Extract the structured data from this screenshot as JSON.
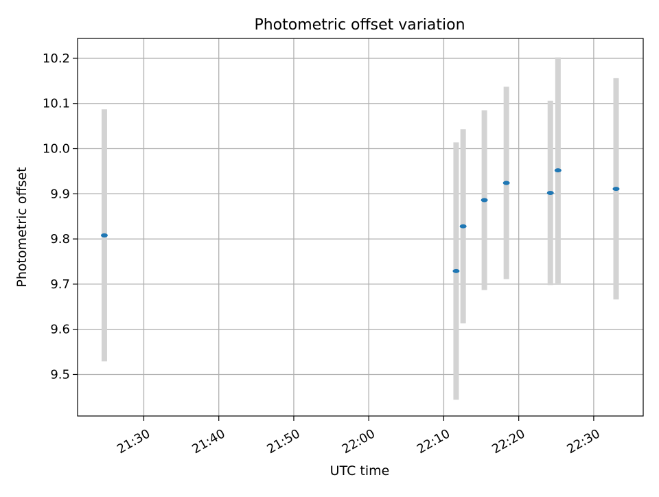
{
  "chart_data": {
    "type": "scatter",
    "title": "Photometric offset variation",
    "xlabel": "UTC time",
    "ylabel": "Photometric offset",
    "x_tick_labels": [
      "21:30",
      "21:40",
      "21:50",
      "22:00",
      "22:10",
      "22:20",
      "22:30"
    ],
    "y_tick_labels": [
      "9.5",
      "9.6",
      "9.7",
      "9.8",
      "9.9",
      "10.0",
      "10.1",
      "10.2"
    ],
    "x_range": [
      "21:21:10",
      "22:36:36"
    ],
    "ylim": [
      9.408,
      10.244
    ],
    "grid": true,
    "points": [
      {
        "time": "21:24:44",
        "y": 9.808,
        "err": 0.279
      },
      {
        "time": "22:11:39",
        "y": 9.729,
        "err": 0.285
      },
      {
        "time": "22:12:35",
        "y": 9.828,
        "err": 0.215
      },
      {
        "time": "22:15:25",
        "y": 9.886,
        "err": 0.199
      },
      {
        "time": "22:18:21",
        "y": 9.924,
        "err": 0.213
      },
      {
        "time": "22:24:13",
        "y": 9.902,
        "err": 0.204
      },
      {
        "time": "22:25:14",
        "y": 9.952,
        "err": 0.25
      },
      {
        "time": "22:32:59",
        "y": 9.911,
        "err": 0.245
      }
    ],
    "colors": {
      "marker": "#1f77b4",
      "errorbar": "#d3d3d3",
      "grid": "#b0b0b0"
    }
  }
}
